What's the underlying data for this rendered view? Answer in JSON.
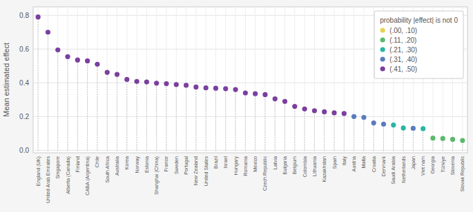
{
  "chart_data": {
    "type": "scatter",
    "y_label": "Mean estimated effect",
    "legend_title": "probability |effect| is not 0",
    "categories": [
      "England (UK)",
      "United Arab Emirates",
      "Singapore",
      "Alberta (Canada)",
      "Finland",
      "CABA (Argentina)",
      "Chile",
      "South Africa",
      "Australia",
      "Korea",
      "Norway",
      "Estonia",
      "Shanghai (China)",
      "France",
      "Sweden",
      "Portugal",
      "New Zealand",
      "United States",
      "Brazil",
      "Israel",
      "Hungary",
      "Romania",
      "Mexico",
      "Czech Republic",
      "Latvia",
      "Bulgaria",
      "Belgium",
      "Colombia",
      "Lithuania",
      "Kazakhstan",
      "Spain",
      "Italy",
      "Austria",
      "Malta",
      "Croatia",
      "Denmark",
      "Saudi Arabia",
      "Netherlands",
      "Japan",
      "Viet nam",
      "Georgia",
      "Türkiye",
      "Slovenia",
      "Slovak Republic"
    ],
    "series": [
      {
        "name": "(.00, .10)",
        "color": "#e8d44d",
        "values": [
          null,
          null,
          null,
          null,
          null,
          null,
          null,
          null,
          null,
          null,
          null,
          null,
          null,
          null,
          null,
          null,
          null,
          null,
          null,
          null,
          null,
          null,
          null,
          null,
          null,
          null,
          null,
          null,
          null,
          null,
          null,
          null,
          null,
          null,
          null,
          null,
          null,
          null,
          null,
          null,
          null,
          null,
          null,
          null
        ]
      },
      {
        "name": "(.11, .20)",
        "color": "#5ab96b",
        "values": [
          null,
          null,
          null,
          null,
          null,
          null,
          null,
          null,
          null,
          null,
          null,
          null,
          null,
          null,
          null,
          null,
          null,
          null,
          null,
          null,
          null,
          null,
          null,
          null,
          null,
          null,
          null,
          null,
          null,
          null,
          null,
          null,
          null,
          null,
          null,
          null,
          null,
          null,
          null,
          null,
          0.072,
          0.07,
          0.065,
          0.058
        ]
      },
      {
        "name": "(.21, .30)",
        "color": "#2ab5a5",
        "values": [
          null,
          null,
          null,
          null,
          null,
          null,
          null,
          null,
          null,
          null,
          null,
          null,
          null,
          null,
          null,
          null,
          null,
          null,
          null,
          null,
          null,
          null,
          null,
          null,
          null,
          null,
          null,
          null,
          null,
          null,
          null,
          null,
          null,
          null,
          null,
          null,
          0.15,
          0.132,
          null,
          0.128,
          null,
          null,
          null,
          null
        ]
      },
      {
        "name": "(.31, .40)",
        "color": "#5b7bbf",
        "values": [
          null,
          null,
          null,
          null,
          null,
          null,
          null,
          null,
          null,
          null,
          null,
          null,
          null,
          null,
          null,
          null,
          null,
          null,
          null,
          null,
          null,
          null,
          null,
          null,
          null,
          null,
          null,
          null,
          null,
          null,
          null,
          null,
          0.2,
          0.195,
          0.162,
          0.155,
          null,
          null,
          0.13,
          null,
          null,
          null,
          null,
          null
        ]
      },
      {
        "name": "(.41, .50)",
        "color": "#7b3f9e",
        "values": [
          0.79,
          0.7,
          0.595,
          0.555,
          0.535,
          0.53,
          0.51,
          0.462,
          0.45,
          0.42,
          0.408,
          0.405,
          0.398,
          0.395,
          0.39,
          0.385,
          0.375,
          0.37,
          0.368,
          0.365,
          0.36,
          0.34,
          0.335,
          0.33,
          0.305,
          0.29,
          0.26,
          0.245,
          0.235,
          0.228,
          0.222,
          0.218,
          null,
          null,
          null,
          null,
          null,
          null,
          null,
          null,
          null,
          null,
          null,
          null
        ]
      }
    ],
    "ylim": [
      -0.015,
      0.85
    ],
    "yticks": [
      {
        "value": 0,
        "label": "0.0"
      },
      0.2,
      0.4,
      0.6,
      0.8
    ],
    "grid": true,
    "legend": "upper right"
  }
}
